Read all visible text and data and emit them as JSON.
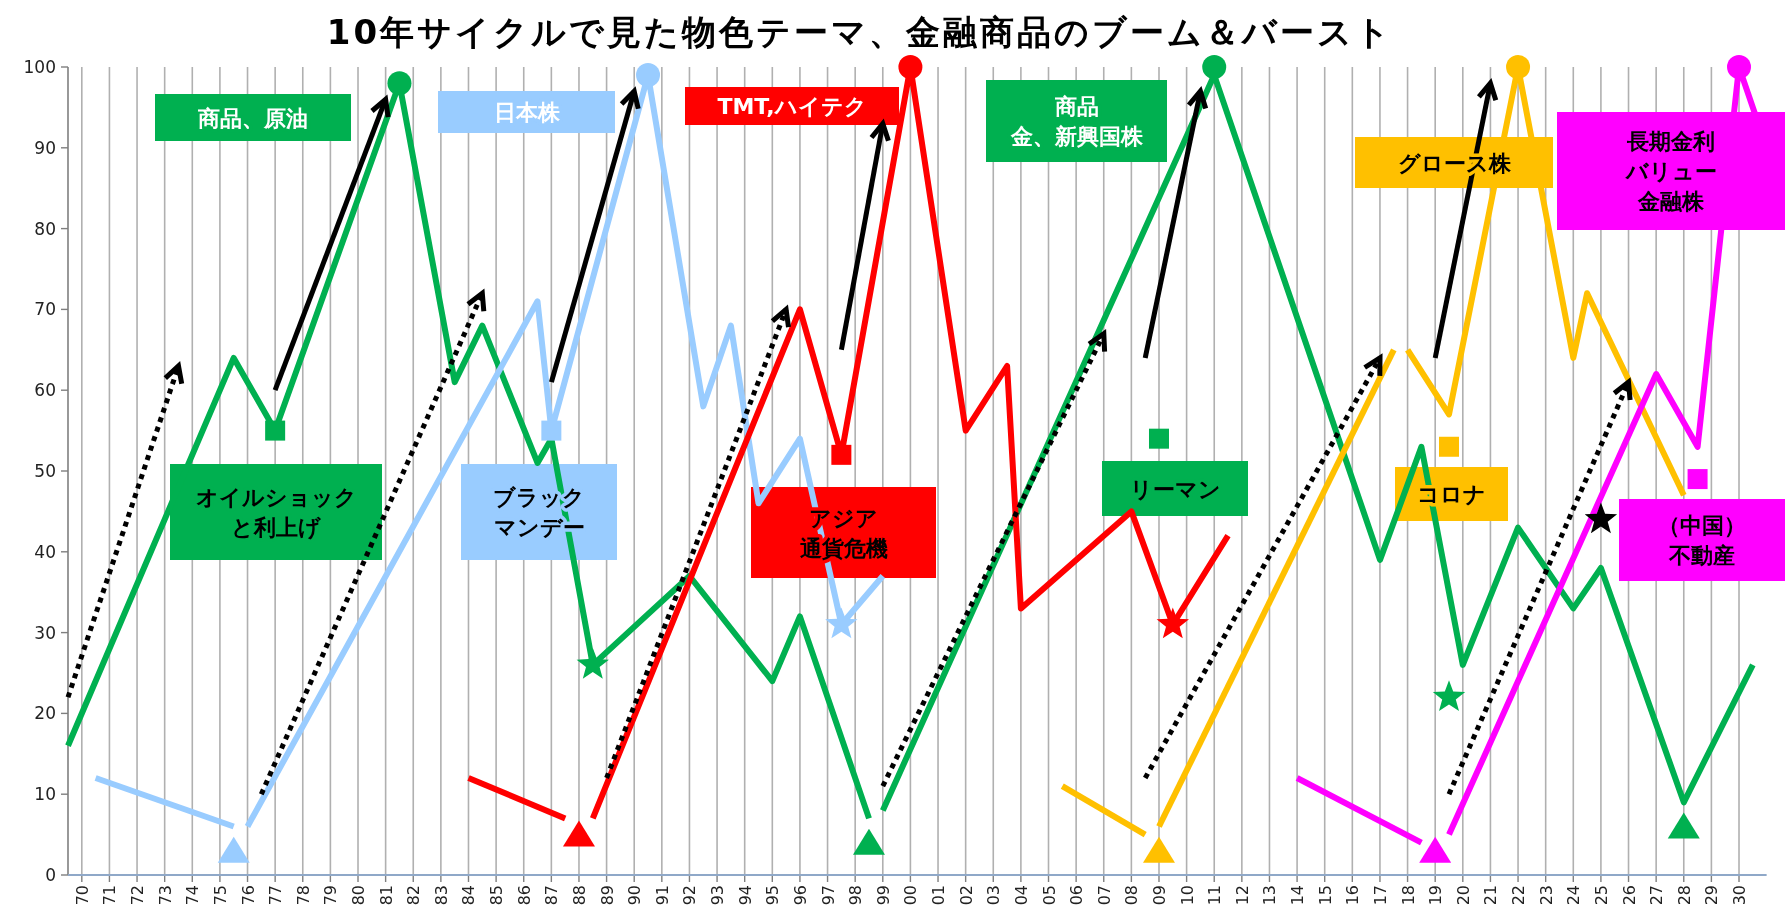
{
  "chart_data": {
    "type": "line",
    "title": "10年サイクルで見た物色テーマ、金融商品のブーム＆バースト",
    "xlim": [
      1969.5,
      2031
    ],
    "ylim": [
      0,
      100
    ],
    "yticks": [
      0,
      10,
      20,
      30,
      40,
      50,
      60,
      70,
      80,
      90,
      100
    ],
    "grid": "x",
    "xticks": [
      {
        "value": 1970,
        "label": "70"
      },
      {
        "value": 1971,
        "label": "71"
      },
      {
        "value": 1972,
        "label": "72"
      },
      {
        "value": 1973,
        "label": "73"
      },
      {
        "value": 1974,
        "label": "74"
      },
      {
        "value": 1975,
        "label": "75"
      },
      {
        "value": 1976,
        "label": "76"
      },
      {
        "value": 1977,
        "label": "77"
      },
      {
        "value": 1978,
        "label": "78"
      },
      {
        "value": 1979,
        "label": "79"
      },
      {
        "value": 1980,
        "label": "80"
      },
      {
        "value": 1981,
        "label": "81"
      },
      {
        "value": 1982,
        "label": "82"
      },
      {
        "value": 1983,
        "label": "83"
      },
      {
        "value": 1984,
        "label": "84"
      },
      {
        "value": 1985,
        "label": "85"
      },
      {
        "value": 1986,
        "label": "86"
      },
      {
        "value": 1987,
        "label": "87"
      },
      {
        "value": 1988,
        "label": "88"
      },
      {
        "value": 1989,
        "label": "89"
      },
      {
        "value": 1990,
        "label": "90"
      },
      {
        "value": 1991,
        "label": "91"
      },
      {
        "value": 1992,
        "label": "92"
      },
      {
        "value": 1993,
        "label": "93"
      },
      {
        "value": 1994,
        "label": "94"
      },
      {
        "value": 1995,
        "label": "95"
      },
      {
        "value": 1996,
        "label": "96"
      },
      {
        "value": 1997,
        "label": "97"
      },
      {
        "value": 1998,
        "label": "98"
      },
      {
        "value": 1999,
        "label": "99"
      },
      {
        "value": 2000,
        "label": "00"
      },
      {
        "value": 2001,
        "label": "01"
      },
      {
        "value": 2002,
        "label": "02"
      },
      {
        "value": 2003,
        "label": "03"
      },
      {
        "value": 2004,
        "label": "04"
      },
      {
        "value": 2005,
        "label": "05"
      },
      {
        "value": 2006,
        "label": "06"
      },
      {
        "value": 2007,
        "label": "07"
      },
      {
        "value": 2008,
        "label": "08"
      },
      {
        "value": 2009,
        "label": "09"
      },
      {
        "value": 2010,
        "label": "10"
      },
      {
        "value": 2011,
        "label": "11"
      },
      {
        "value": 2012,
        "label": "12"
      },
      {
        "value": 2013,
        "label": "13"
      },
      {
        "value": 2014,
        "label": "14"
      },
      {
        "value": 2015,
        "label": "15"
      },
      {
        "value": 2016,
        "label": "16"
      },
      {
        "value": 2017,
        "label": "17"
      },
      {
        "value": 2018,
        "label": "18"
      },
      {
        "value": 2019,
        "label": "19"
      },
      {
        "value": 2020,
        "label": "20"
      },
      {
        "value": 2021,
        "label": "21"
      },
      {
        "value": 2022,
        "label": "22"
      },
      {
        "value": 2023,
        "label": "23"
      },
      {
        "value": 2024,
        "label": "24"
      },
      {
        "value": 2025,
        "label": "25"
      },
      {
        "value": 2026,
        "label": "26"
      },
      {
        "value": 2027,
        "label": "27"
      },
      {
        "value": 2028,
        "label": "28"
      },
      {
        "value": 2029,
        "label": "29"
      },
      {
        "value": 2030,
        "label": "30"
      }
    ],
    "annotations": [
      "商品、原油",
      "日本株",
      "TMT,ハイテク",
      "商品",
      "金、新興国株",
      "グロース株",
      "長期金利",
      "バリュー",
      "金融株",
      "オイルショック",
      "と利上げ",
      "ブラック",
      "マンデー",
      "アジア",
      "通貨危機",
      "リーマン",
      "コロナ",
      "（中国）",
      "不動産"
    ],
    "series": [
      {
        "type": "line",
        "color": "#00b050",
        "x": [
          1969.5,
          1975.5,
          1977,
          1981.5,
          1983.5,
          1984.5,
          1986.5,
          1987,
          1988.5,
          1992,
          1995,
          1996,
          1998.5
        ],
        "values": [
          16,
          64,
          55,
          98,
          61,
          68,
          51,
          54,
          26,
          37,
          24,
          32,
          7
        ]
      },
      {
        "type": "line",
        "color": "#00b050",
        "x": [
          1999,
          2011,
          2017,
          2018.5,
          2020,
          2022,
          2024,
          2025,
          2028,
          2030.5
        ],
        "values": [
          8,
          99,
          39,
          53,
          26,
          43,
          33,
          38,
          9,
          26
        ]
      },
      {
        "type": "line",
        "color": "#99ccff",
        "x": [
          1970.5,
          1975.5
        ],
        "values": [
          12,
          6
        ]
      },
      {
        "type": "line",
        "color": "#99ccff",
        "x": [
          1976,
          1986.5,
          1987,
          1990.5,
          1992.5,
          1993.5,
          1994.5,
          1996,
          1997.5,
          1999
        ],
        "values": [
          6,
          71,
          55,
          99,
          58,
          68,
          46,
          54,
          31,
          37
        ]
      },
      {
        "type": "line",
        "color": "#ff0000",
        "x": [
          1984,
          1987.5
        ],
        "values": [
          12,
          7
        ]
      },
      {
        "type": "line",
        "color": "#ff0000",
        "x": [
          1988.5,
          1996,
          1997.5,
          2000,
          2002,
          2003.5,
          2004,
          2008,
          2009.5,
          2011.5
        ],
        "values": [
          7,
          70,
          52,
          100,
          55,
          63,
          33,
          45,
          31,
          42
        ]
      },
      {
        "type": "line",
        "color": "#ffc000",
        "x": [
          2005.5,
          2008.5
        ],
        "values": [
          11,
          5
        ]
      },
      {
        "type": "line",
        "color": "#ffc000",
        "x": [
          2009,
          2017.5
        ],
        "values": [
          6,
          65
        ]
      },
      {
        "type": "line",
        "color": "#ffc000",
        "x": [
          2018,
          2019.5,
          2022,
          2024,
          2024.5,
          2028
        ],
        "values": [
          65,
          57,
          100,
          64,
          72,
          47
        ]
      },
      {
        "type": "line",
        "color": "#ff00ff",
        "x": [
          2014,
          2018.5
        ],
        "values": [
          12,
          4
        ]
      },
      {
        "type": "line",
        "color": "#ff00ff",
        "x": [
          2019.5,
          2027,
          2028.5,
          2030,
          2031
        ],
        "values": [
          5,
          62,
          53,
          100,
          90
        ]
      },
      {
        "type": "line",
        "color": "#000000",
        "line_style": "dotted",
        "x": [
          1969.5,
          1973.5
        ],
        "values": [
          22,
          63
        ]
      },
      {
        "type": "line",
        "color": "#000000",
        "line_style": "dotted",
        "x": [
          1976.5,
          1984.5
        ],
        "values": [
          10,
          72
        ]
      },
      {
        "type": "line",
        "color": "#000000",
        "line_style": "dotted",
        "x": [
          1989,
          1995.5
        ],
        "values": [
          12,
          70
        ]
      },
      {
        "type": "line",
        "color": "#000000",
        "line_style": "dotted",
        "x": [
          1999,
          2007
        ],
        "values": [
          11,
          67
        ]
      },
      {
        "type": "line",
        "color": "#000000",
        "line_style": "dotted",
        "x": [
          2008.5,
          2017
        ],
        "values": [
          12,
          64
        ]
      },
      {
        "type": "line",
        "color": "#000000",
        "line_style": "dotted",
        "x": [
          2019.5,
          2026
        ],
        "values": [
          10,
          61
        ]
      },
      {
        "type": "line",
        "color": "#000000",
        "line_style": "solid",
        "x": [
          1977,
          1981
        ],
        "values": [
          60,
          96
        ]
      },
      {
        "type": "line",
        "color": "#000000",
        "line_style": "solid",
        "x": [
          1987,
          1990
        ],
        "values": [
          61,
          97
        ]
      },
      {
        "type": "line",
        "color": "#000000",
        "line_style": "solid",
        "x": [
          1997.5,
          1999
        ],
        "values": [
          65,
          93
        ]
      },
      {
        "type": "line",
        "color": "#000000",
        "line_style": "solid",
        "x": [
          2008.5,
          2010.5
        ],
        "values": [
          64,
          97
        ]
      },
      {
        "type": "line",
        "color": "#000000",
        "line_style": "solid",
        "x": [
          2019,
          2021
        ],
        "values": [
          64,
          98
        ]
      },
      {
        "type": "scatter",
        "color": "#00b050",
        "marker": "triangle",
        "x": [
          1998.5,
          2028
        ],
        "values": [
          4,
          6
        ]
      },
      {
        "type": "scatter",
        "color": "#00b050",
        "marker": "square",
        "x": [
          1977,
          2009
        ],
        "values": [
          55,
          54
        ]
      },
      {
        "type": "scatter",
        "color": "#00b050",
        "marker": "circle",
        "x": [
          1981.5,
          2011
        ],
        "values": [
          98,
          100
        ]
      },
      {
        "type": "scatter",
        "color": "#00b050",
        "marker": "star",
        "x": [
          1988.5,
          2019.5
        ],
        "values": [
          26,
          22
        ]
      },
      {
        "type": "scatter",
        "color": "#99ccff",
        "marker": "triangle",
        "x": [
          1975.5
        ],
        "values": [
          3
        ]
      },
      {
        "type": "scatter",
        "color": "#99ccff",
        "marker": "square",
        "x": [
          1987
        ],
        "values": [
          55
        ]
      },
      {
        "type": "scatter",
        "color": "#99ccff",
        "marker": "circle",
        "x": [
          1990.5
        ],
        "values": [
          99
        ]
      },
      {
        "type": "scatter",
        "color": "#99ccff",
        "marker": "star",
        "x": [
          1997.5
        ],
        "values": [
          31
        ]
      },
      {
        "type": "scatter",
        "color": "#ff0000",
        "marker": "triangle",
        "x": [
          1988
        ],
        "values": [
          5
        ]
      },
      {
        "type": "scatter",
        "color": "#ff0000",
        "marker": "square",
        "x": [
          1997.5
        ],
        "values": [
          52
        ]
      },
      {
        "type": "scatter",
        "color": "#ff0000",
        "marker": "circle",
        "x": [
          2000
        ],
        "values": [
          100
        ]
      },
      {
        "type": "scatter",
        "color": "#ff0000",
        "marker": "star",
        "x": [
          2009.5
        ],
        "values": [
          31
        ]
      },
      {
        "type": "scatter",
        "color": "#ffc000",
        "marker": "triangle",
        "x": [
          2009
        ],
        "values": [
          3
        ]
      },
      {
        "type": "scatter",
        "color": "#ffc000",
        "marker": "square",
        "x": [
          2019.5
        ],
        "values": [
          53
        ]
      },
      {
        "type": "scatter",
        "color": "#ffc000",
        "marker": "circle",
        "x": [
          2022
        ],
        "values": [
          100
        ]
      },
      {
        "type": "scatter",
        "color": "#ff00ff",
        "marker": "triangle",
        "x": [
          2019
        ],
        "values": [
          3
        ]
      },
      {
        "type": "scatter",
        "color": "#ff00ff",
        "marker": "square",
        "x": [
          2028.5
        ],
        "values": [
          49
        ]
      },
      {
        "type": "scatter",
        "color": "#ff00ff",
        "marker": "circle",
        "x": [
          2030
        ],
        "values": [
          100
        ]
      },
      {
        "type": "scatter",
        "color": "#000000",
        "marker": "star",
        "x": [
          2025
        ],
        "values": [
          44
        ]
      }
    ]
  }
}
